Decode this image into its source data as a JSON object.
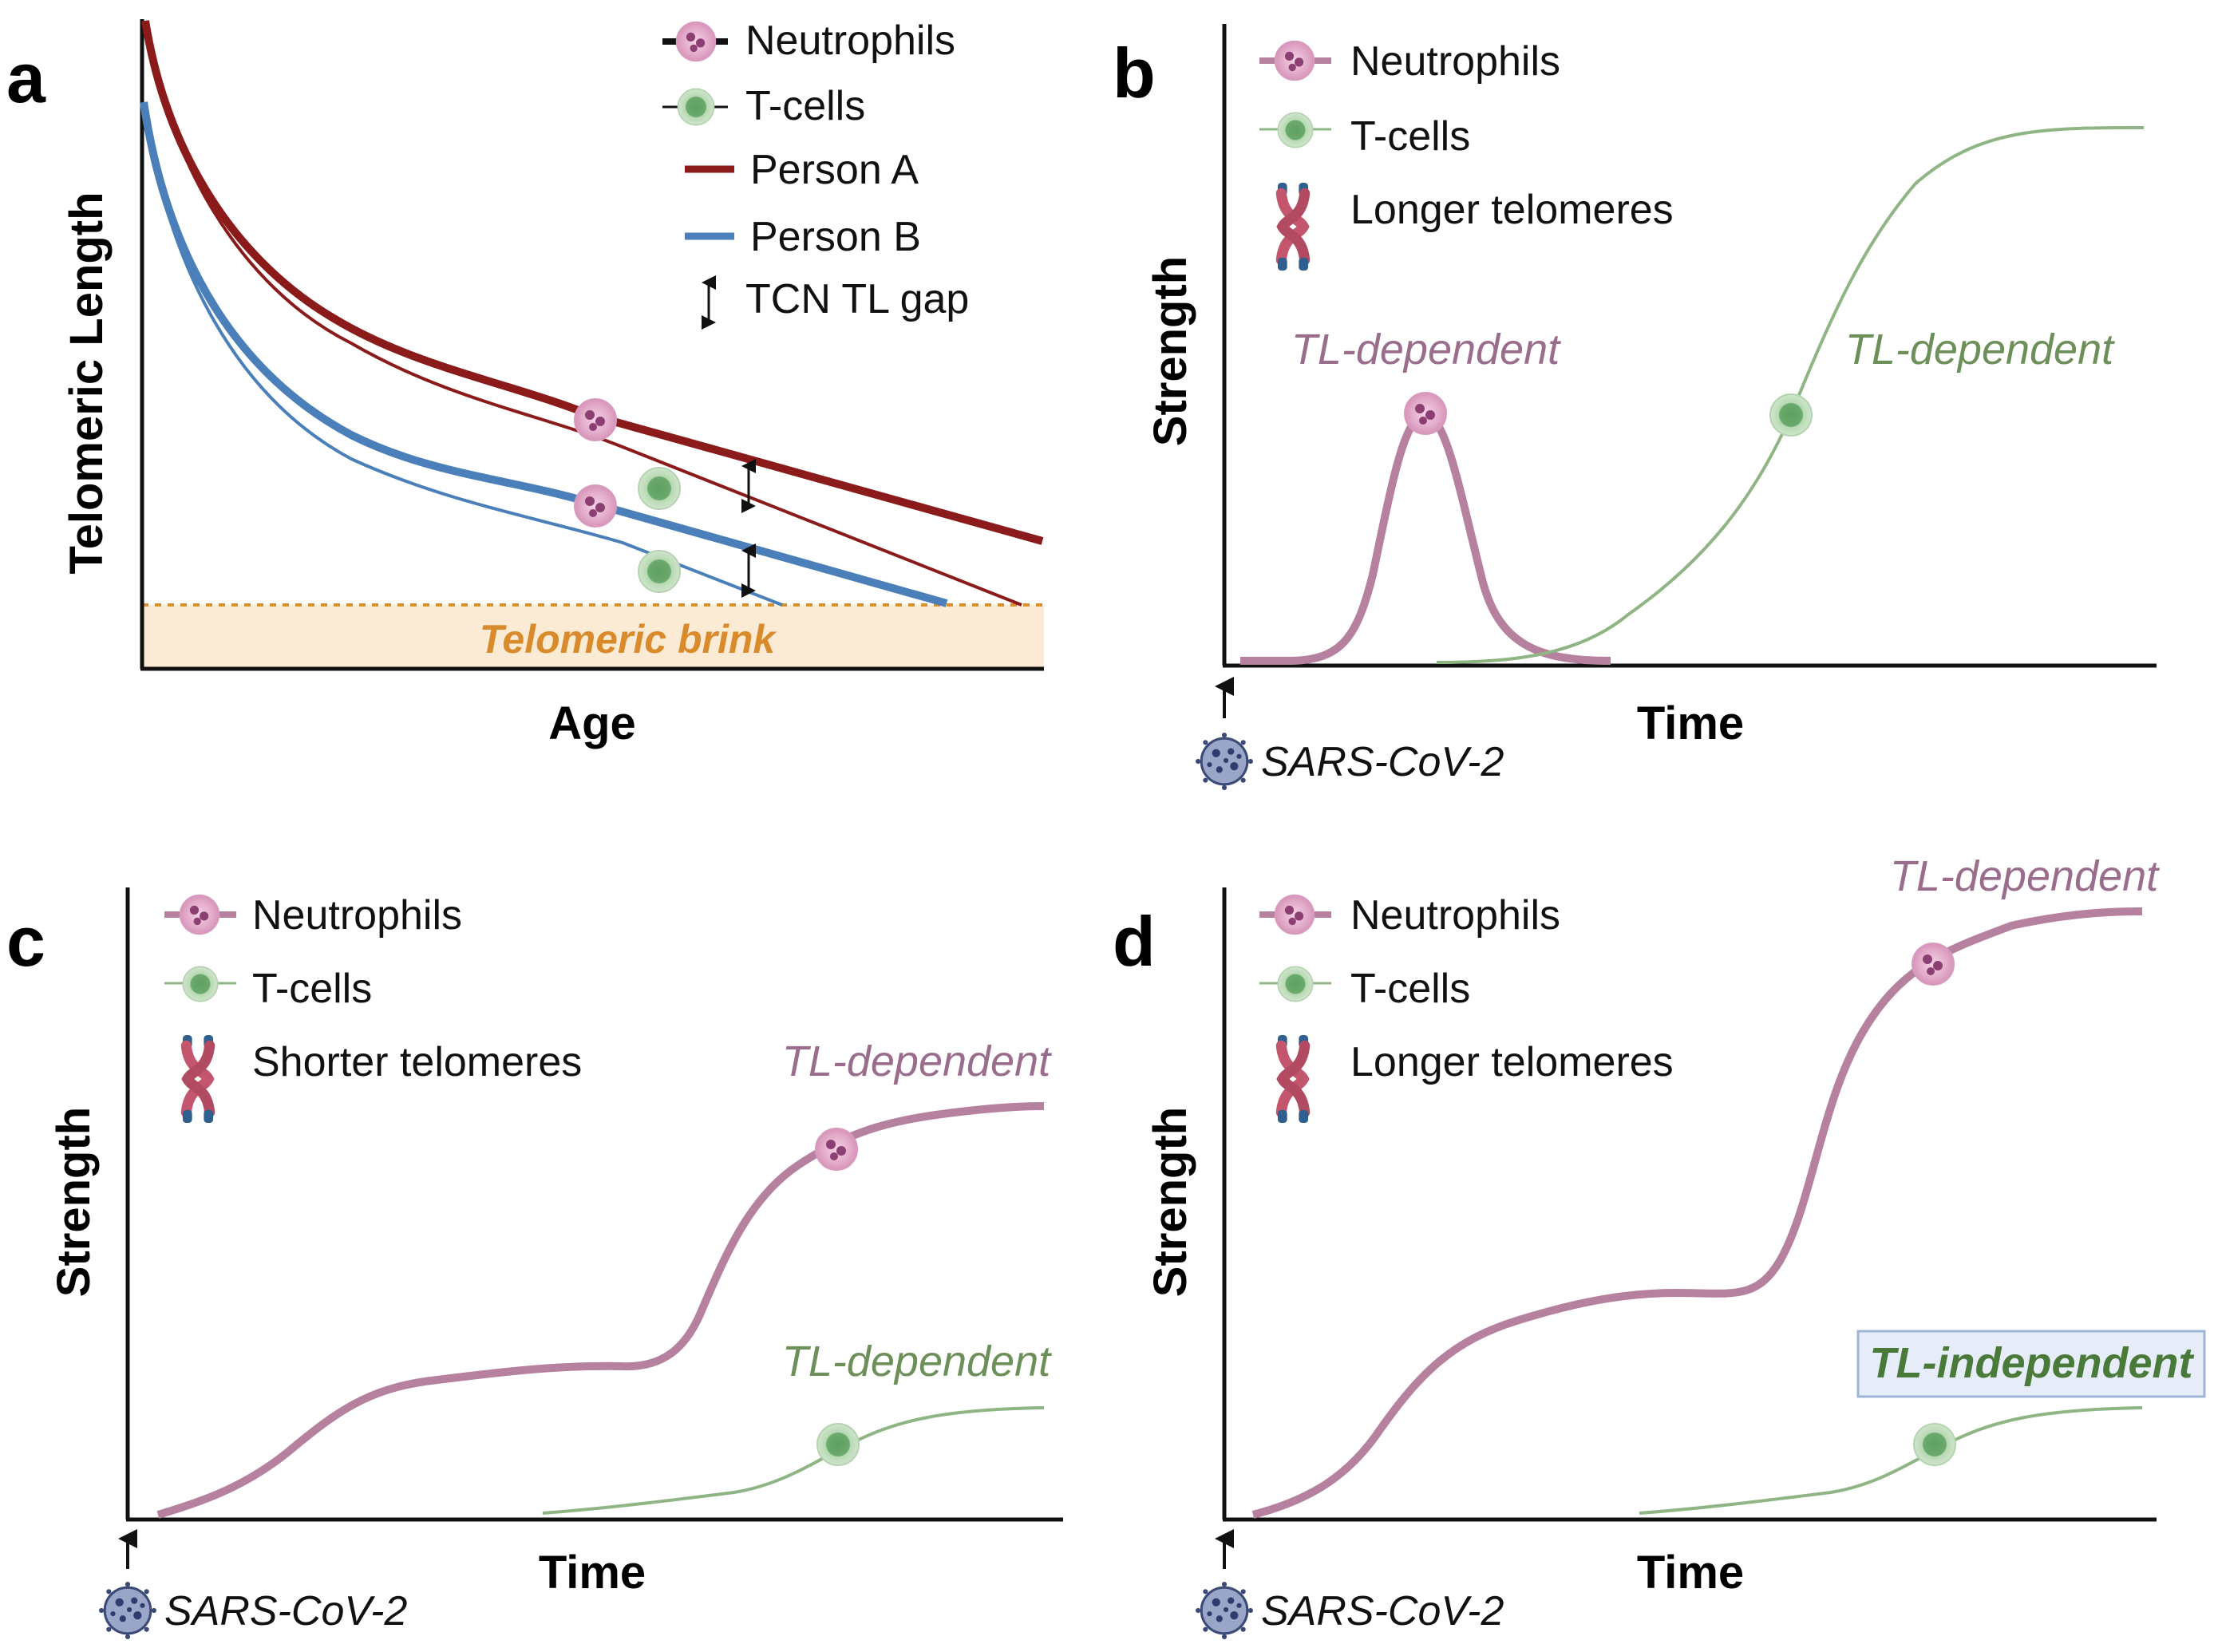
{
  "colors": {
    "person_a": "#8b1a1a",
    "person_b": "#4a7fba",
    "neutrophil": "#b5819e",
    "neutrophil_fill": "#e7b9d3",
    "tcell": "#8fb584",
    "tcell_fill": "#6eaa70",
    "brink_fill": "#fbebd4",
    "brink_line": "#d9902f",
    "brink_text": "#d98a2a",
    "annot_purple": "#9a6d8d",
    "annot_green": "#6d8f5a",
    "independent_green": "#4a7a3a",
    "independent_box": "#e6edf8"
  },
  "panel_a": {
    "letter": "a",
    "ylabel": "Telomeric Length",
    "xlabel": "Age",
    "brink_label": "Telomeric brink",
    "legend": {
      "neutrophils": "Neutrophils",
      "tcells": "T-cells",
      "person_a": "Person A",
      "person_b": "Person B",
      "gap": "TCN TL gap"
    }
  },
  "panel_b": {
    "letter": "b",
    "ylabel": "Strength",
    "xlabel": "Time",
    "virus": "SARS-CoV-2",
    "legend": {
      "neutrophils": "Neutrophils",
      "tcells": "T-cells",
      "telomeres": "Longer telomeres"
    },
    "annot_neutrophil": "TL-dependent",
    "annot_tcell": "TL-dependent"
  },
  "panel_c": {
    "letter": "c",
    "ylabel": "Strength",
    "xlabel": "Time",
    "virus": "SARS-CoV-2",
    "legend": {
      "neutrophils": "Neutrophils",
      "tcells": "T-cells",
      "telomeres": "Shorter telomeres"
    },
    "annot_neutrophil": "TL-dependent",
    "annot_tcell": "TL-dependent"
  },
  "panel_d": {
    "letter": "d",
    "ylabel": "Strength",
    "xlabel": "Time",
    "virus": "SARS-CoV-2",
    "legend": {
      "neutrophils": "Neutrophils",
      "tcells": "T-cells",
      "telomeres": "Longer telomeres"
    },
    "annot_neutrophil": "TL-dependent",
    "annot_tcell": "TL-independent"
  }
}
